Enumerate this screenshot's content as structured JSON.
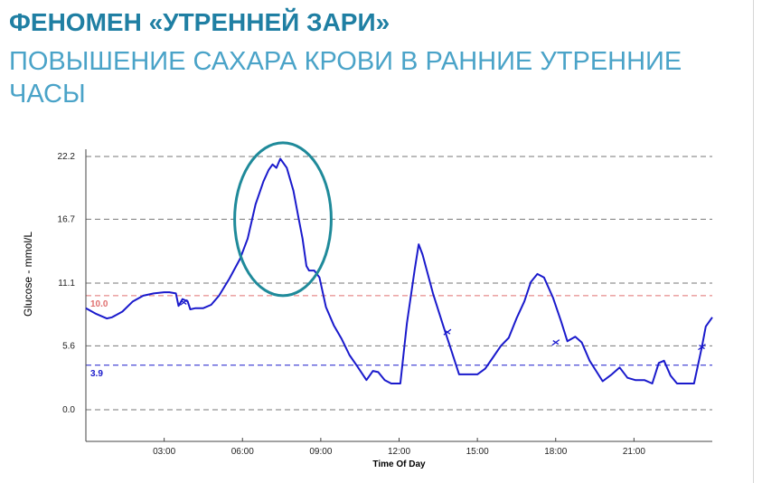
{
  "slide": {
    "title": "ФЕНОМЕН «УТРЕННЕЙ ЗАРИ»",
    "subtitle": "ПОВЫШЕНИЕ САХАРА КРОВИ В РАННИЕ УТРЕННИЕ ЧАСЫ"
  },
  "colors": {
    "title": "#1f7fa3",
    "subtitle": "#4aa3c8",
    "line": "#1a1acc",
    "high_ref": "#e07070",
    "low_ref": "#1a1acc",
    "ellipse": "#1f8a9a",
    "grid": "#777777"
  },
  "chart_data": {
    "type": "line",
    "xlabel": "Time Of Day",
    "ylabel": "Glucose - mmol/L",
    "xlim": [
      0,
      24
    ],
    "ylim": [
      0,
      22.2
    ],
    "y_ticks": [
      {
        "value": 0.0,
        "label": "0.0"
      },
      {
        "value": 5.6,
        "label": "5.6"
      },
      {
        "value": 11.1,
        "label": "11.1"
      },
      {
        "value": 16.7,
        "label": "16.7"
      },
      {
        "value": 22.2,
        "label": "22.2"
      }
    ],
    "x_ticks": [
      {
        "value": 3,
        "label": "03:00"
      },
      {
        "value": 6,
        "label": "06:00"
      },
      {
        "value": 9,
        "label": "09:00"
      },
      {
        "value": 12,
        "label": "12:00"
      },
      {
        "value": 15,
        "label": "15:00"
      },
      {
        "value": 18,
        "label": "18:00"
      },
      {
        "value": 21,
        "label": "21:00"
      }
    ],
    "grid": "horizontal-dashed",
    "reference_lines": [
      {
        "value": 10.0,
        "label": "10.0",
        "color": "#e07070"
      },
      {
        "value": 3.9,
        "label": "3.9",
        "color": "#1a1acc"
      }
    ],
    "series": [
      {
        "color": "#1a1acc",
        "points": [
          [
            0.0,
            8.9
          ],
          [
            0.4,
            8.4
          ],
          [
            0.8,
            8.0
          ],
          [
            1.0,
            8.1
          ],
          [
            1.4,
            8.6
          ],
          [
            1.8,
            9.5
          ],
          [
            2.2,
            10.0
          ],
          [
            2.6,
            10.2
          ],
          [
            3.0,
            10.3
          ],
          [
            3.2,
            10.3
          ],
          [
            3.45,
            10.2
          ],
          [
            3.55,
            9.1
          ],
          [
            3.7,
            9.7
          ],
          [
            3.9,
            9.5
          ],
          [
            4.0,
            8.8
          ],
          [
            4.2,
            8.9
          ],
          [
            4.5,
            8.9
          ],
          [
            4.8,
            9.2
          ],
          [
            5.1,
            10.0
          ],
          [
            5.5,
            11.5
          ],
          [
            5.9,
            13.2
          ],
          [
            6.2,
            15.0
          ],
          [
            6.5,
            18.0
          ],
          [
            6.8,
            20.0
          ],
          [
            7.0,
            21.0
          ],
          [
            7.15,
            21.5
          ],
          [
            7.3,
            21.2
          ],
          [
            7.45,
            22.0
          ],
          [
            7.7,
            21.2
          ],
          [
            7.95,
            19.2
          ],
          [
            8.15,
            16.8
          ],
          [
            8.3,
            15.0
          ],
          [
            8.45,
            12.6
          ],
          [
            8.55,
            12.2
          ],
          [
            8.75,
            12.2
          ],
          [
            8.95,
            11.6
          ],
          [
            9.2,
            9.0
          ],
          [
            9.5,
            7.4
          ],
          [
            9.8,
            6.2
          ],
          [
            10.1,
            4.8
          ],
          [
            10.4,
            3.8
          ],
          [
            10.75,
            2.6
          ],
          [
            11.0,
            3.4
          ],
          [
            11.2,
            3.3
          ],
          [
            11.45,
            2.6
          ],
          [
            11.7,
            2.3
          ],
          [
            12.05,
            2.3
          ],
          [
            12.3,
            7.6
          ],
          [
            12.6,
            12.3
          ],
          [
            12.75,
            14.5
          ],
          [
            12.9,
            13.6
          ],
          [
            13.3,
            10.2
          ],
          [
            13.7,
            7.3
          ],
          [
            14.0,
            5.2
          ],
          [
            14.3,
            3.1
          ],
          [
            14.55,
            3.1
          ],
          [
            15.0,
            3.1
          ],
          [
            15.3,
            3.6
          ],
          [
            15.6,
            4.6
          ],
          [
            15.9,
            5.6
          ],
          [
            16.2,
            6.3
          ],
          [
            16.5,
            8.0
          ],
          [
            16.8,
            9.5
          ],
          [
            17.05,
            11.2
          ],
          [
            17.3,
            11.9
          ],
          [
            17.55,
            11.6
          ],
          [
            17.9,
            9.8
          ],
          [
            18.2,
            7.8
          ],
          [
            18.45,
            6.0
          ],
          [
            18.75,
            6.4
          ],
          [
            19.0,
            5.9
          ],
          [
            19.3,
            4.3
          ],
          [
            19.55,
            3.4
          ],
          [
            19.8,
            2.5
          ],
          [
            20.15,
            3.1
          ],
          [
            20.45,
            3.7
          ],
          [
            20.75,
            2.8
          ],
          [
            21.05,
            2.6
          ],
          [
            21.4,
            2.6
          ],
          [
            21.7,
            2.3
          ],
          [
            21.95,
            4.1
          ],
          [
            22.15,
            4.3
          ],
          [
            22.4,
            3.0
          ],
          [
            22.65,
            2.3
          ],
          [
            23.0,
            2.3
          ],
          [
            23.3,
            2.3
          ],
          [
            23.6,
            5.5
          ],
          [
            23.75,
            7.3
          ],
          [
            24.0,
            8.1
          ]
        ]
      }
    ],
    "event_markers": [
      {
        "x": 3.75,
        "y": 9.4
      },
      {
        "x": 13.85,
        "y": 6.8
      },
      {
        "x": 18.0,
        "y": 5.9
      },
      {
        "x": 23.6,
        "y": 5.5
      }
    ],
    "highlight": {
      "shape": "ellipse",
      "x_center": 7.55,
      "y_center": 16.7,
      "x_radius": 1.85,
      "y_radius": 6.7
    }
  }
}
